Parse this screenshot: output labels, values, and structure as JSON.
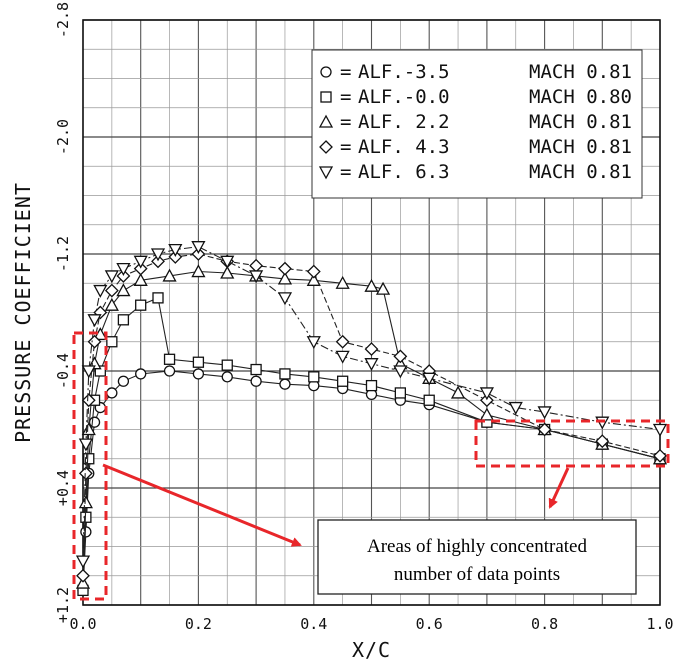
{
  "chart_data": {
    "type": "line",
    "title": "",
    "xlabel": "X/C",
    "ylabel": "PRESSURE COEFFICIENT",
    "xlim": [
      0.0,
      1.0
    ],
    "ylim": [
      1.2,
      -2.8
    ],
    "y_inverted": true,
    "grid": true,
    "x_ticks": [
      "0.0",
      "0.2",
      "0.4",
      "0.6",
      "0.8",
      "1.0"
    ],
    "y_ticks": [
      {
        "value": -2.8,
        "label": "-2.8"
      },
      {
        "value": -2.0,
        "label": "-2.0"
      },
      {
        "value": -1.2,
        "label": "-1.2"
      },
      {
        "value": -0.4,
        "label": "-0.4"
      },
      {
        "value": 0.4,
        "label": "+0.4"
      },
      {
        "value": 1.2,
        "label": "+1.2"
      }
    ],
    "legend_placement": "top-right",
    "series": [
      {
        "name": "ALF.-3.5",
        "symbol": "=",
        "mach": "MACH 0.81",
        "marker": "circle",
        "x": [
          0.0,
          0.005,
          0.01,
          0.02,
          0.03,
          0.05,
          0.07,
          0.1,
          0.15,
          0.2,
          0.25,
          0.3,
          0.35,
          0.4,
          0.45,
          0.5,
          0.55,
          0.6,
          0.7,
          0.8,
          0.9,
          1.0
        ],
        "y": [
          1.1,
          0.7,
          0.3,
          -0.05,
          -0.15,
          -0.25,
          -0.33,
          -0.38,
          -0.4,
          -0.38,
          -0.36,
          -0.33,
          -0.31,
          -0.3,
          -0.28,
          -0.24,
          -0.2,
          -0.17,
          -0.05,
          0.0,
          0.1,
          0.2
        ]
      },
      {
        "name": "ALF.-0.0",
        "symbol": "=",
        "mach": "MACH 0.80",
        "marker": "square",
        "x": [
          0.0,
          0.005,
          0.01,
          0.02,
          0.03,
          0.05,
          0.07,
          0.1,
          0.13,
          0.15,
          0.2,
          0.25,
          0.3,
          0.35,
          0.4,
          0.45,
          0.5,
          0.55,
          0.6,
          0.7,
          0.8,
          0.9,
          1.0
        ],
        "y": [
          1.1,
          0.6,
          0.2,
          -0.2,
          -0.4,
          -0.6,
          -0.75,
          -0.85,
          -0.9,
          -0.48,
          -0.46,
          -0.44,
          -0.41,
          -0.38,
          -0.36,
          -0.33,
          -0.3,
          -0.25,
          -0.2,
          -0.05,
          0.0,
          0.1,
          0.2
        ]
      },
      {
        "name": "ALF. 2.2",
        "symbol": "=",
        "mach": "MACH 0.81",
        "marker": "triangle-up",
        "x": [
          0.0,
          0.005,
          0.01,
          0.02,
          0.03,
          0.05,
          0.07,
          0.1,
          0.15,
          0.2,
          0.25,
          0.3,
          0.35,
          0.4,
          0.45,
          0.5,
          0.52,
          0.55,
          0.6,
          0.65,
          0.7,
          0.8,
          0.9,
          1.0
        ],
        "y": [
          1.05,
          0.5,
          0.0,
          -0.45,
          -0.65,
          -0.85,
          -0.95,
          -1.02,
          -1.05,
          -1.08,
          -1.07,
          -1.05,
          -1.03,
          -1.02,
          -1.0,
          -0.98,
          -0.96,
          -0.45,
          -0.35,
          -0.25,
          -0.1,
          0.0,
          0.1,
          0.2
        ]
      },
      {
        "name": "ALF. 4.3",
        "symbol": "=",
        "mach": "MACH 0.81",
        "marker": "diamond",
        "x": [
          0.0,
          0.005,
          0.01,
          0.02,
          0.03,
          0.05,
          0.07,
          0.1,
          0.13,
          0.16,
          0.2,
          0.25,
          0.3,
          0.35,
          0.4,
          0.45,
          0.5,
          0.55,
          0.6,
          0.7,
          0.8,
          0.9,
          1.0
        ],
        "y": [
          1.0,
          0.3,
          -0.2,
          -0.6,
          -0.8,
          -0.95,
          -1.05,
          -1.1,
          -1.15,
          -1.18,
          -1.2,
          -1.15,
          -1.12,
          -1.1,
          -1.08,
          -0.6,
          -0.55,
          -0.5,
          -0.4,
          -0.2,
          0.0,
          0.08,
          0.18
        ]
      },
      {
        "name": "ALF. 6.3",
        "symbol": "=",
        "mach": "MACH 0.81",
        "marker": "triangle-down",
        "x": [
          0.0,
          0.005,
          0.01,
          0.02,
          0.03,
          0.05,
          0.07,
          0.1,
          0.13,
          0.16,
          0.2,
          0.25,
          0.3,
          0.35,
          0.4,
          0.45,
          0.5,
          0.55,
          0.6,
          0.7,
          0.75,
          0.8,
          0.9,
          1.0
        ],
        "y": [
          0.9,
          0.1,
          -0.4,
          -0.75,
          -0.95,
          -1.05,
          -1.1,
          -1.15,
          -1.2,
          -1.23,
          -1.25,
          -1.15,
          -1.05,
          -0.9,
          -0.6,
          -0.5,
          -0.45,
          -0.4,
          -0.35,
          -0.25,
          -0.15,
          -0.12,
          -0.05,
          0.0
        ]
      }
    ],
    "annotation": {
      "line1": "Areas of highly concentrated",
      "line2": "number of data points"
    }
  }
}
